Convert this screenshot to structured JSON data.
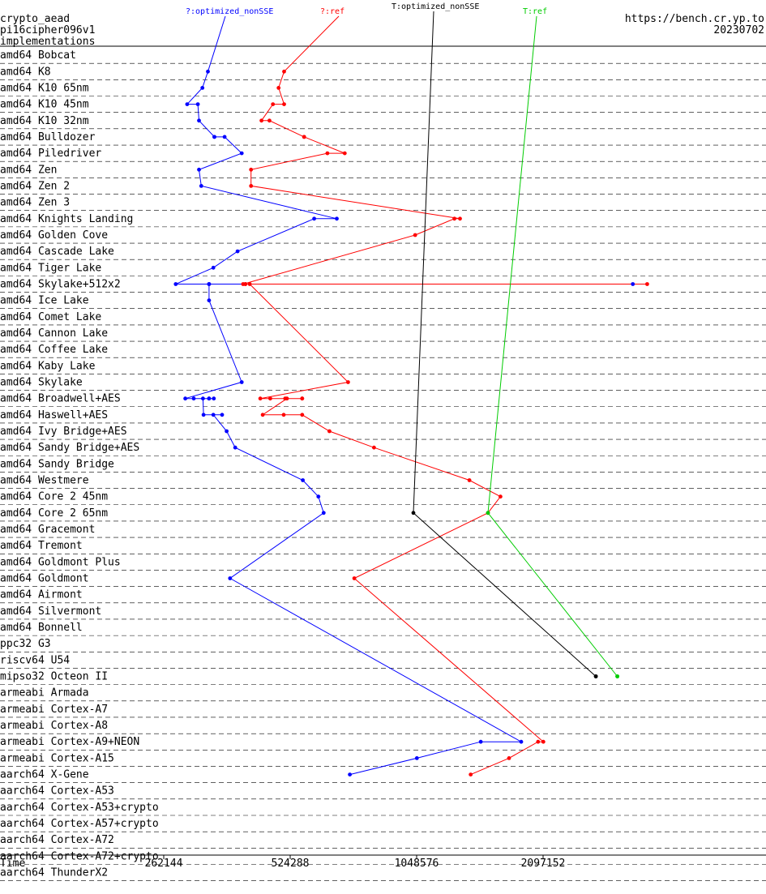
{
  "header": {
    "line1": "crypto_aead",
    "line2": "pi16cipher096v1",
    "line3": "implementations",
    "url": "https://bench.cr.yp.to",
    "date": "20230702"
  },
  "chart_data": {
    "type": "line",
    "x_scale": "log2",
    "xlabel": "Time",
    "x_ticks": [
      "262144",
      "524288",
      "1048576",
      "2097152"
    ],
    "x_tick_values": [
      262144,
      524288,
      1048576,
      2097152
    ],
    "series": [
      {
        "name": "?:optimized_nonSSE",
        "color": "#0000ff"
      },
      {
        "name": "?:ref",
        "color": "#ff0000"
      },
      {
        "name": "T:optimized_nonSSE",
        "color": "#000000"
      },
      {
        "name": "T:ref",
        "color": "#00cc00"
      }
    ],
    "categories": [
      "amd64 Bobcat",
      "amd64 K8",
      "amd64 K10 65nm",
      "amd64 K10 45nm",
      "amd64 K10 32nm",
      "amd64 Bulldozer",
      "amd64 Piledriver",
      "amd64 Zen",
      "amd64 Zen 2",
      "amd64 Zen 3",
      "amd64 Knights Landing",
      "amd64 Golden Cove",
      "amd64 Cascade Lake",
      "amd64 Tiger Lake",
      "amd64 Skylake+512x2",
      "amd64 Ice Lake",
      "amd64 Comet Lake",
      "amd64 Cannon Lake",
      "amd64 Coffee Lake",
      "amd64 Kaby Lake",
      "amd64 Skylake",
      "amd64 Broadwell+AES",
      "amd64 Haswell+AES",
      "amd64 Ivy Bridge+AES",
      "amd64 Sandy Bridge+AES",
      "amd64 Sandy Bridge",
      "amd64 Westmere",
      "amd64 Core 2 45nm",
      "amd64 Core 2 65nm",
      "amd64 Gracemont",
      "amd64 Tremont",
      "amd64 Goldmont Plus",
      "amd64 Goldmont",
      "amd64 Airmont",
      "amd64 Silvermont",
      "amd64 Bonnell",
      "ppc32 G3",
      "riscv64 U54",
      "mipso32 Octeon II",
      "armeabi Armada",
      "armeabi Cortex-A7",
      "armeabi Cortex-A8",
      "armeabi Cortex-A9+NEON",
      "armeabi Cortex-A15",
      "aarch64 X-Gene",
      "aarch64 Cortex-A53",
      "aarch64 Cortex-A53+crypto",
      "aarch64 Cortex-A57+crypto",
      "aarch64 Cortex-A72",
      "aarch64 Cortex-A72+crypto",
      "aarch64 ThunderX2"
    ],
    "points": {
      "?:optimized_nonSSE": [
        [
          1,
          334000
        ],
        [
          2,
          324000
        ],
        [
          3,
          298000
        ],
        [
          3,
          316000
        ],
        [
          4,
          318000
        ],
        [
          5,
          346000
        ],
        [
          5,
          346000
        ],
        [
          5,
          366000
        ],
        [
          6,
          402000
        ],
        [
          7,
          318000
        ],
        [
          8,
          322000
        ],
        [
          10,
          677000
        ],
        [
          10,
          598000
        ],
        [
          12,
          393000
        ],
        [
          13,
          344000
        ],
        [
          14,
          280000
        ],
        [
          14,
          3430000
        ],
        [
          14,
          336000
        ],
        [
          14,
          336000
        ],
        [
          15,
          336000
        ],
        [
          20,
          402000
        ],
        [
          21,
          295000
        ],
        [
          21,
          309000
        ],
        [
          21,
          336000
        ],
        [
          21,
          336000
        ],
        [
          21,
          345000
        ],
        [
          21,
          325000
        ],
        [
          22,
          326000
        ],
        [
          22,
          361000
        ],
        [
          22,
          344000
        ],
        [
          23,
          370000
        ],
        [
          24,
          388000
        ],
        [
          26,
          562000
        ],
        [
          27,
          612000
        ],
        [
          28,
          630000
        ],
        [
          32,
          377000
        ],
        [
          42,
          1860000
        ],
        [
          42,
          1490000
        ],
        [
          43,
          1050000
        ],
        [
          44,
          727000
        ]
      ],
      "?:ref": [
        [
          1,
          507000
        ],
        [
          2,
          492000
        ],
        [
          3,
          507000
        ],
        [
          3,
          477000
        ],
        [
          4,
          448000
        ],
        [
          4,
          468000
        ],
        [
          5,
          566000
        ],
        [
          5,
          566000
        ],
        [
          6,
          707000
        ],
        [
          6,
          643000
        ],
        [
          7,
          423000
        ],
        [
          8,
          423000
        ],
        [
          10,
          1330000
        ],
        [
          10,
          1290000
        ],
        [
          11,
          1040000
        ],
        [
          14,
          405000
        ],
        [
          14,
          3710000
        ],
        [
          14,
          410000
        ],
        [
          14,
          410000
        ],
        [
          14,
          420000
        ],
        [
          20,
          720000
        ],
        [
          21,
          445000
        ],
        [
          21,
          470000
        ],
        [
          21,
          560000
        ],
        [
          21,
          560000
        ],
        [
          21,
          510000
        ],
        [
          21,
          515000
        ],
        [
          22,
          451000
        ],
        [
          22,
          506000
        ],
        [
          22,
          560000
        ],
        [
          23,
          650000
        ],
        [
          24,
          830000
        ],
        [
          26,
          1400000
        ],
        [
          27,
          1660000
        ],
        [
          28,
          1550000
        ],
        [
          32,
          745000
        ],
        [
          42,
          2100000
        ],
        [
          42,
          2040000
        ],
        [
          43,
          1740000
        ],
        [
          44,
          1410000
        ]
      ],
      "T:optimized_nonSSE": [
        [
          28,
          1030000
        ],
        [
          38,
          2800000
        ],
        [
          38,
          2800000
        ]
      ],
      "T:ref": [
        [
          28,
          1550000
        ],
        [
          38,
          3150000
        ],
        [
          38,
          3150000
        ]
      ]
    }
  }
}
